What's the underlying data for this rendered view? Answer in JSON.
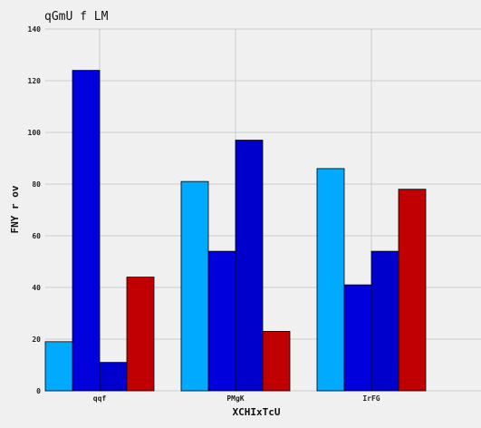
{
  "chart_data": {
    "type": "bar",
    "title": "qGmU f LM",
    "xlabel": "XCHIxTcU",
    "ylabel": "FNY r ov",
    "categories": [
      "qqf",
      "PMgK",
      "IrFG"
    ],
    "ylim": [
      0,
      140
    ],
    "yticks": [
      0,
      20,
      40,
      60,
      80,
      100,
      120,
      140
    ],
    "grid": true,
    "series": [
      {
        "values": [
          19,
          81,
          86
        ],
        "color": "#00aaff"
      },
      {
        "values": [
          124,
          54,
          41
        ],
        "color": "#0000dd"
      },
      {
        "values": [
          11,
          97,
          54
        ],
        "color": "#0000cc"
      },
      {
        "values": [
          44,
          23,
          78
        ],
        "color": "#c00000"
      }
    ]
  }
}
